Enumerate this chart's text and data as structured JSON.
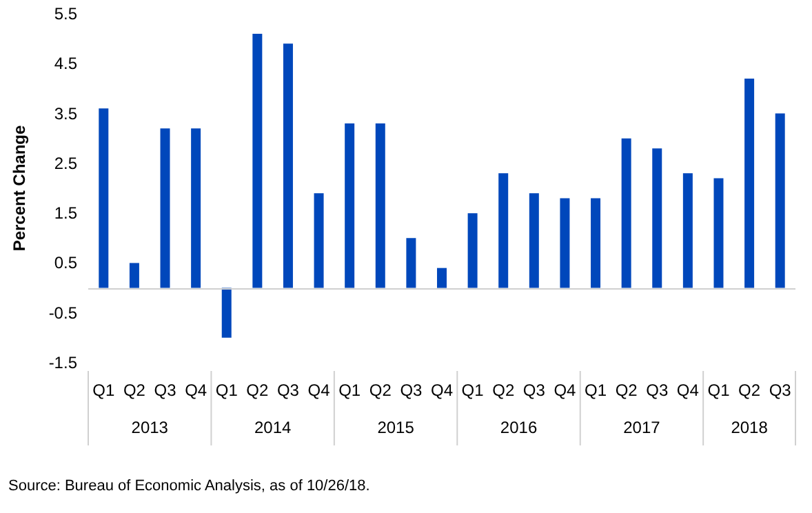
{
  "chart_data": {
    "type": "bar",
    "ylabel": "Percent Change",
    "categories": [
      "Q1",
      "Q2",
      "Q3",
      "Q4",
      "Q1",
      "Q2",
      "Q3",
      "Q4",
      "Q1",
      "Q2",
      "Q3",
      "Q4",
      "Q1",
      "Q2",
      "Q3",
      "Q4",
      "Q1",
      "Q2",
      "Q3",
      "Q4",
      "Q1",
      "Q2",
      "Q3"
    ],
    "values": [
      3.6,
      0.5,
      3.2,
      3.2,
      -1.0,
      5.1,
      4.9,
      1.9,
      3.3,
      3.3,
      1.0,
      0.4,
      1.5,
      2.3,
      1.9,
      1.8,
      1.8,
      3.0,
      2.8,
      2.3,
      2.2,
      4.2,
      3.5
    ],
    "color": "#0047bb",
    "ylim": [
      -1.5,
      5.5
    ],
    "yticks": [
      -1.5,
      -0.5,
      0.5,
      1.5,
      2.5,
      3.5,
      4.5,
      5.5
    ],
    "annotations": [
      "2013",
      "2014",
      "2015",
      "2016",
      "2017",
      "2018",
      "Source: Bureau of Economic Analysis, as of 10/26/18."
    ]
  }
}
